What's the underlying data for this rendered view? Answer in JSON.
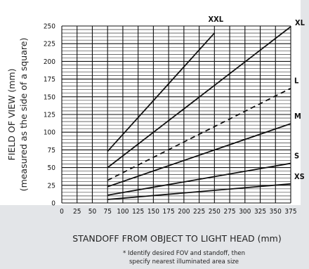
{
  "chart_data": {
    "type": "line",
    "xlabel": "STANDOFF FROM OBJECT TO LIGHT HEAD (mm)",
    "ylabel_line1": "FIELD OF VIEW (mm)",
    "ylabel_line2": "(measured as the side of a square)",
    "xlim": [
      0,
      375
    ],
    "ylim": [
      0,
      250
    ],
    "x_ticks": [
      0,
      25,
      50,
      75,
      100,
      125,
      150,
      175,
      200,
      225,
      250,
      275,
      300,
      325,
      350,
      375
    ],
    "y_ticks": [
      0,
      25,
      50,
      75,
      100,
      125,
      150,
      175,
      200,
      225,
      250
    ],
    "grid": true,
    "series": [
      {
        "name": "XXL",
        "dashed": false,
        "x": [
          75,
          250
        ],
        "y": [
          73,
          240
        ]
      },
      {
        "name": "XL",
        "dashed": false,
        "x": [
          75,
          375
        ],
        "y": [
          50,
          249
        ]
      },
      {
        "name": "L",
        "dashed": true,
        "x": [
          75,
          375
        ],
        "y": [
          32,
          162
        ]
      },
      {
        "name": "M",
        "dashed": false,
        "x": [
          75,
          375
        ],
        "y": [
          23,
          112
        ]
      },
      {
        "name": "S",
        "dashed": false,
        "x": [
          75,
          375
        ],
        "y": [
          11,
          56
        ]
      },
      {
        "name": "XS",
        "dashed": false,
        "x": [
          75,
          375
        ],
        "y": [
          5,
          27
        ]
      }
    ],
    "footnote_line1": "* Identify desired FOV and standoff, then",
    "footnote_line2": "specify nearest illuminated area size"
  }
}
